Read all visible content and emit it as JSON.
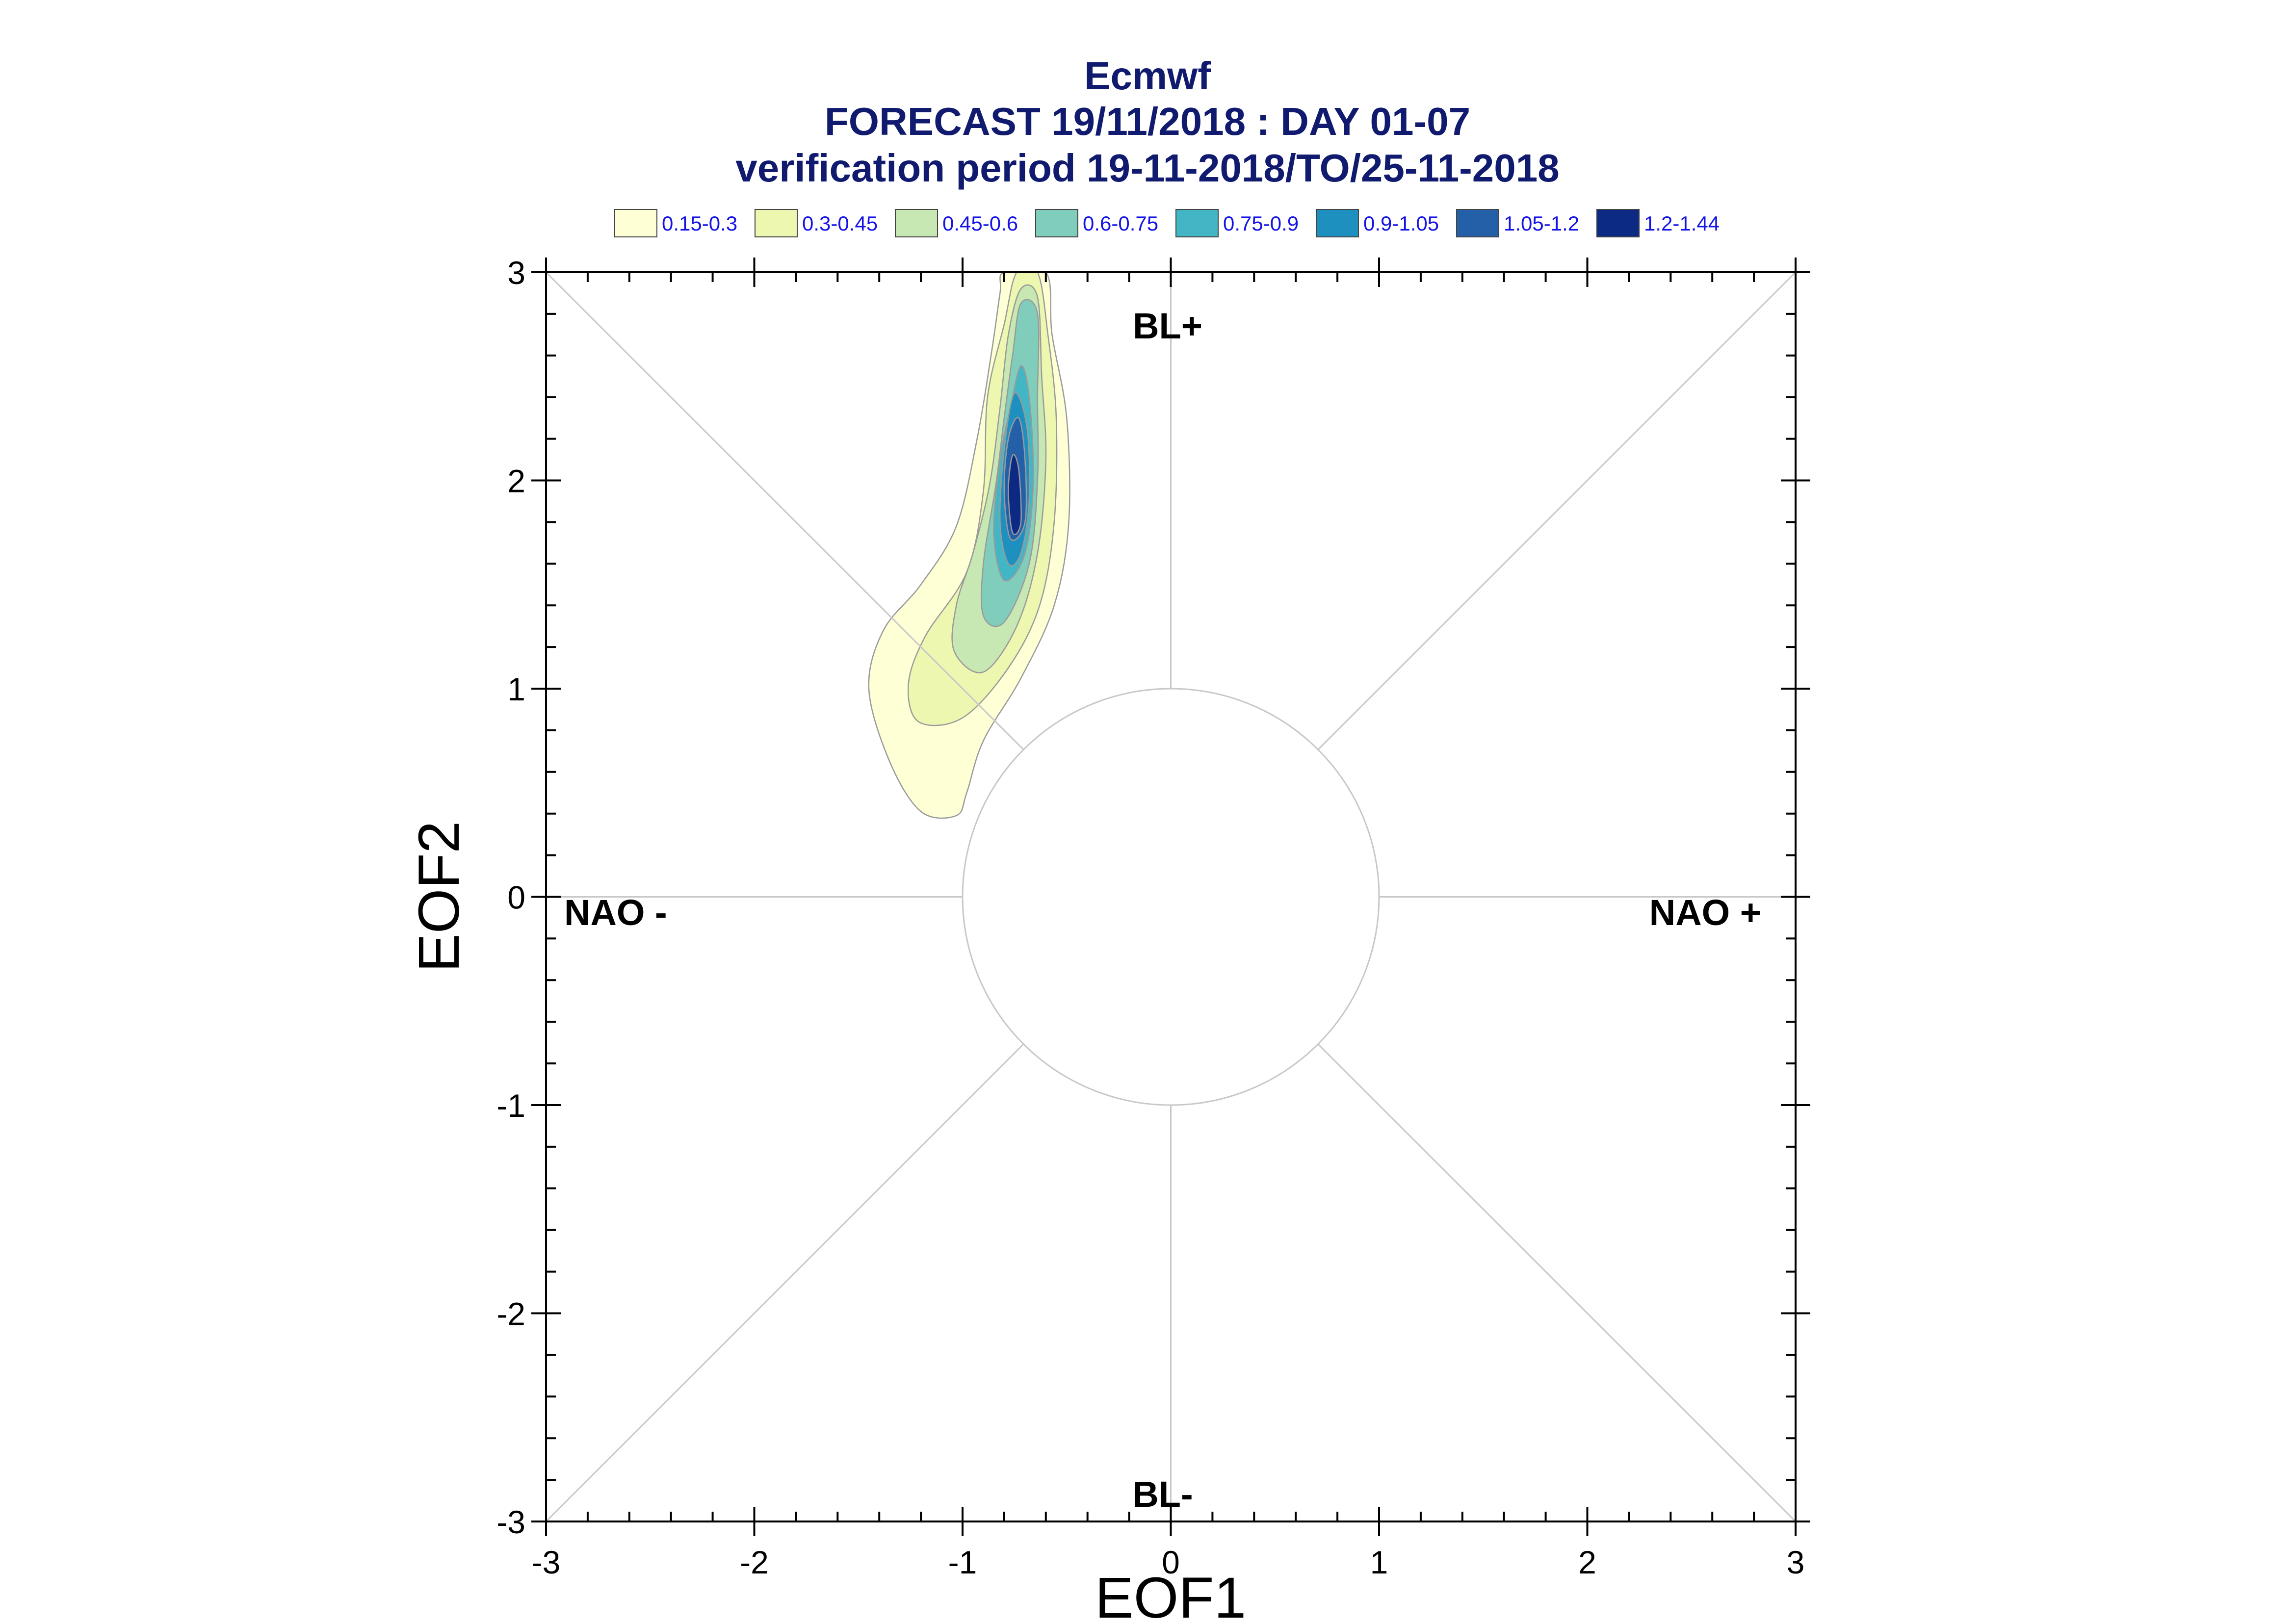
{
  "chart_data": {
    "type": "contour",
    "title": "Ecmwf",
    "subtitle_lines": [
      "FORECAST 19/11/2018 : DAY 01-07",
      "verification period 19-11-2018/TO/25-11-2018"
    ],
    "xlabel": "EOF1",
    "ylabel": "EOF2",
    "xlim": [
      -3,
      3
    ],
    "ylim": [
      -3,
      3
    ],
    "xticks": [
      "-3",
      "-2",
      "-1",
      "0",
      "1",
      "2",
      "3"
    ],
    "yticks": [
      "-3",
      "-2",
      "-1",
      "0",
      "1",
      "2",
      "3"
    ],
    "legend_placement": "top",
    "legend": [
      {
        "label": "0.15-0.3",
        "color": "#ffffd6"
      },
      {
        "label": "0.3-0.45",
        "color": "#eef7b0"
      },
      {
        "label": "0.45-0.6",
        "color": "#c7e8b2"
      },
      {
        "label": "0.6-0.75",
        "color": "#80cdbb"
      },
      {
        "label": "0.75-0.9",
        "color": "#42b6c4"
      },
      {
        "label": "0.9-1.05",
        "color": "#1e90c0"
      },
      {
        "label": "1.05-1.2",
        "color": "#2460a8"
      },
      {
        "label": "1.2-1.44",
        "color": "#0c2a84"
      }
    ],
    "regime_labels": {
      "top": "BL+",
      "bottom": "BL-",
      "left": "NAO -",
      "right": "NAO +"
    },
    "reference_circle_radius": 1,
    "density_peak": {
      "x": -0.75,
      "y": 1.95,
      "value": 1.44
    },
    "contours": [
      {
        "level": "0.15-0.3",
        "points": [
          [
            -1.03,
            0.39
          ],
          [
            -1.2,
            0.41
          ],
          [
            -1.35,
            0.65
          ],
          [
            -1.45,
            1.0
          ],
          [
            -1.38,
            1.28
          ],
          [
            -1.2,
            1.5
          ],
          [
            -1.03,
            1.78
          ],
          [
            -0.93,
            2.2
          ],
          [
            -0.86,
            2.62
          ],
          [
            -0.82,
            2.9
          ],
          [
            -0.8,
            3.0
          ],
          [
            -0.6,
            3.0
          ],
          [
            -0.57,
            2.7
          ],
          [
            -0.5,
            2.3
          ],
          [
            -0.49,
            1.8
          ],
          [
            -0.56,
            1.4
          ],
          [
            -0.72,
            1.05
          ],
          [
            -0.9,
            0.75
          ],
          [
            -0.98,
            0.5
          ]
        ]
      },
      {
        "level": "0.3-0.45",
        "points": [
          [
            -1.0,
            0.86
          ],
          [
            -1.21,
            0.84
          ],
          [
            -1.26,
            1.02
          ],
          [
            -1.18,
            1.25
          ],
          [
            -0.98,
            1.56
          ],
          [
            -0.9,
            1.95
          ],
          [
            -0.88,
            2.4
          ],
          [
            -0.8,
            2.75
          ],
          [
            -0.74,
            3.0
          ],
          [
            -0.64,
            3.0
          ],
          [
            -0.59,
            2.7
          ],
          [
            -0.55,
            2.3
          ],
          [
            -0.56,
            1.8
          ],
          [
            -0.63,
            1.4
          ],
          [
            -0.78,
            1.1
          ]
        ]
      },
      {
        "level": "0.45-0.6",
        "points": [
          [
            -0.9,
            1.08
          ],
          [
            -1.04,
            1.18
          ],
          [
            -1.03,
            1.4
          ],
          [
            -0.95,
            1.65
          ],
          [
            -0.87,
            1.98
          ],
          [
            -0.82,
            2.35
          ],
          [
            -0.78,
            2.7
          ],
          [
            -0.72,
            2.92
          ],
          [
            -0.64,
            2.88
          ],
          [
            -0.62,
            2.5
          ],
          [
            -0.6,
            2.1
          ],
          [
            -0.64,
            1.65
          ],
          [
            -0.74,
            1.3
          ]
        ]
      },
      {
        "level": "0.6-0.75",
        "points": [
          [
            -0.9,
            1.35
          ],
          [
            -0.9,
            1.6
          ],
          [
            -0.84,
            1.98
          ],
          [
            -0.8,
            2.3
          ],
          [
            -0.76,
            2.6
          ],
          [
            -0.72,
            2.85
          ],
          [
            -0.64,
            2.8
          ],
          [
            -0.64,
            2.4
          ],
          [
            -0.64,
            2.0
          ],
          [
            -0.68,
            1.6
          ],
          [
            -0.8,
            1.32
          ]
        ]
      },
      {
        "level": "0.75-0.9",
        "points": [
          [
            -0.8,
            1.52
          ],
          [
            -0.85,
            1.75
          ],
          [
            -0.82,
            2.1
          ],
          [
            -0.77,
            2.35
          ],
          [
            -0.72,
            2.55
          ],
          [
            -0.68,
            2.4
          ],
          [
            -0.66,
            2.0
          ],
          [
            -0.7,
            1.65
          ]
        ]
      },
      {
        "level": "0.9-1.05",
        "points": [
          [
            -0.78,
            1.6
          ],
          [
            -0.82,
            1.8
          ],
          [
            -0.8,
            2.15
          ],
          [
            -0.75,
            2.42
          ],
          [
            -0.69,
            2.25
          ],
          [
            -0.68,
            1.9
          ],
          [
            -0.72,
            1.65
          ]
        ]
      },
      {
        "level": "1.05-1.2",
        "points": [
          [
            -0.77,
            1.72
          ],
          [
            -0.8,
            1.95
          ],
          [
            -0.78,
            2.2
          ],
          [
            -0.73,
            2.3
          ],
          [
            -0.7,
            2.1
          ],
          [
            -0.7,
            1.8
          ]
        ]
      },
      {
        "level": "1.2-1.44",
        "points": [
          [
            -0.76,
            1.75
          ],
          [
            -0.78,
            1.95
          ],
          [
            -0.76,
            2.12
          ],
          [
            -0.73,
            2.05
          ],
          [
            -0.72,
            1.8
          ]
        ]
      }
    ]
  }
}
